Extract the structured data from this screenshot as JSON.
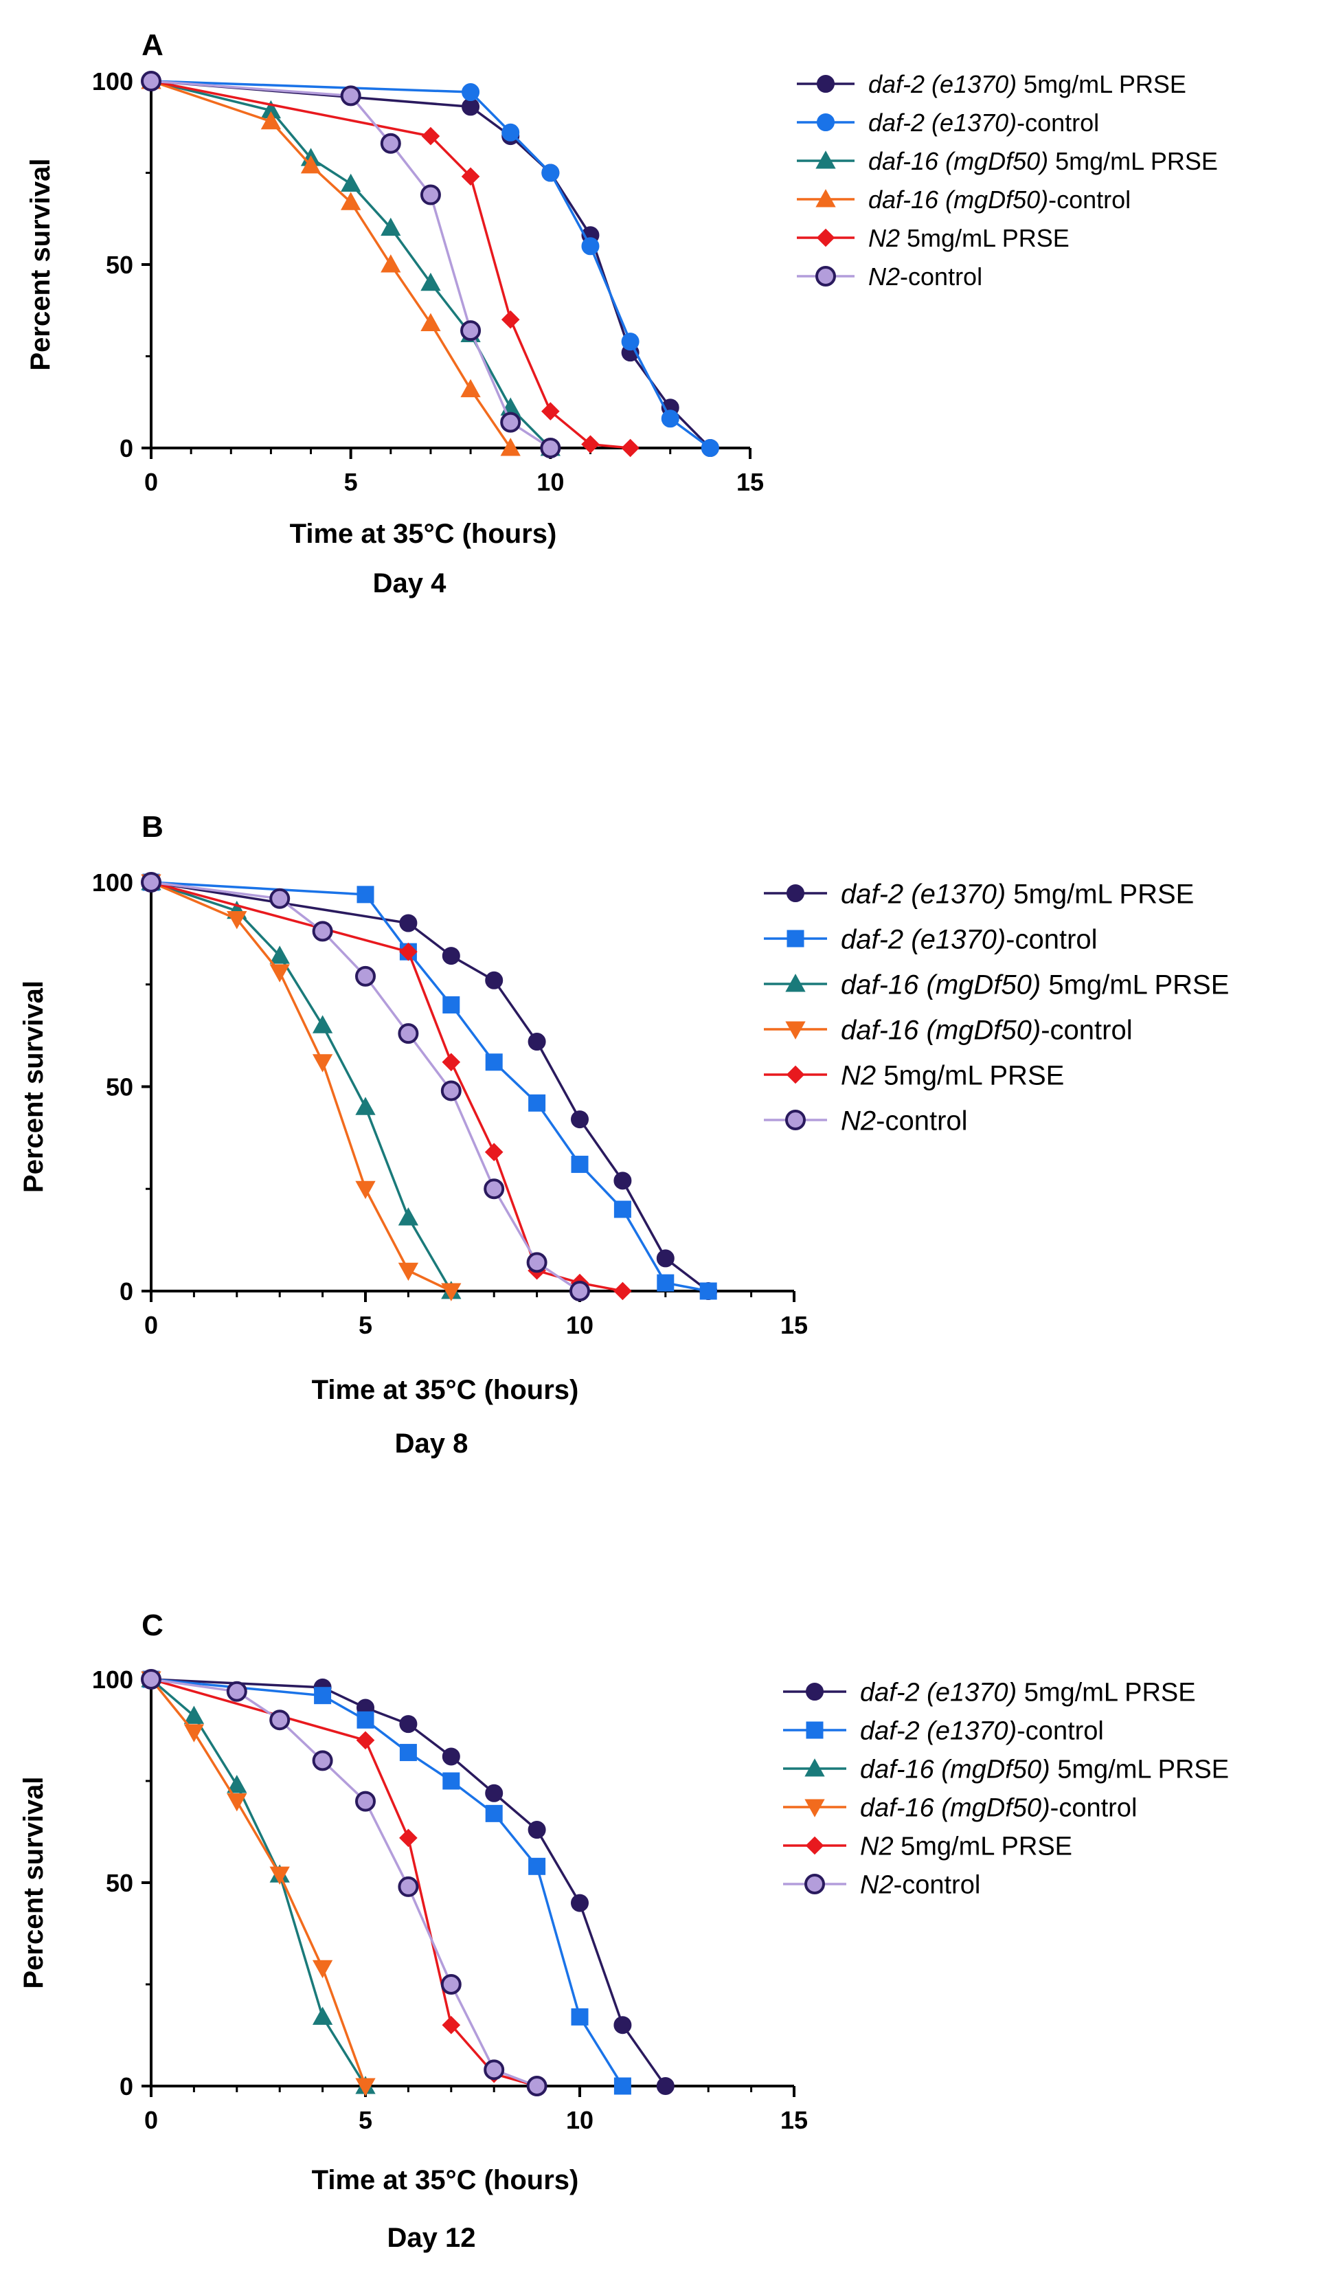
{
  "series_styles": [
    {
      "color": "#2a1a5e",
      "fill": "#2a1a5e",
      "marker": "circle"
    },
    {
      "color": "#1a73e8",
      "fill": "#1a73e8",
      "marker": "circle"
    },
    {
      "color": "#1a7a7a",
      "fill": "#1a7a7a",
      "marker": "triangle-up"
    },
    {
      "color": "#f26b1d",
      "fill": "#f26b1d",
      "marker": "triangle-up"
    },
    {
      "color": "#e8191e",
      "fill": "#e8191e",
      "marker": "diamond"
    },
    {
      "color": "#b39ddb",
      "fill": "#b39ddb",
      "marker": "circle-outline"
    }
  ],
  "chart_data": [
    {
      "type": "line",
      "panel_label": "A",
      "xlabel": "Time at 35°C (hours)",
      "subtitle": "Day 4",
      "ylabel": "Percent survival",
      "xlim": [
        0,
        15
      ],
      "ylim": [
        0,
        100
      ],
      "xticks": [
        0,
        5,
        10,
        15
      ],
      "yticks": [
        0,
        50,
        100
      ],
      "legend": "right",
      "series": [
        {
          "name_italic": "daf-2 (e1370)",
          "name_rest": " 5mg/mL PRSE",
          "style": 0,
          "points": [
            [
              0,
              100
            ],
            [
              8,
              93
            ],
            [
              9,
              85
            ],
            [
              10,
              75
            ],
            [
              11,
              58
            ],
            [
              12,
              26
            ],
            [
              13,
              11
            ],
            [
              14,
              0
            ]
          ]
        },
        {
          "name_italic": "daf-2 (e1370)",
          "name_rest": "-control",
          "style": 1,
          "points": [
            [
              0,
              100
            ],
            [
              8,
              97
            ],
            [
              9,
              86
            ],
            [
              10,
              75
            ],
            [
              11,
              55
            ],
            [
              12,
              29
            ],
            [
              13,
              8
            ],
            [
              14,
              0
            ]
          ]
        },
        {
          "name_italic": "daf-16 (mgDf50)",
          "name_rest": " 5mg/mL PRSE",
          "style": 2,
          "points": [
            [
              0,
              100
            ],
            [
              3,
              92
            ],
            [
              4,
              79
            ],
            [
              5,
              72
            ],
            [
              6,
              60
            ],
            [
              7,
              45
            ],
            [
              8,
              31
            ],
            [
              9,
              11
            ],
            [
              10,
              0
            ]
          ]
        },
        {
          "name_italic": "daf-16 (mgDf50)",
          "name_rest": "-control",
          "style": 3,
          "points": [
            [
              0,
              100
            ],
            [
              3,
              89
            ],
            [
              4,
              77
            ],
            [
              5,
              67
            ],
            [
              6,
              50
            ],
            [
              7,
              34
            ],
            [
              8,
              16
            ],
            [
              9,
              0
            ]
          ]
        },
        {
          "name_italic": "N2",
          "name_rest": " 5mg/mL PRSE",
          "style": 4,
          "points": [
            [
              0,
              100
            ],
            [
              7,
              85
            ],
            [
              8,
              74
            ],
            [
              9,
              35
            ],
            [
              10,
              10
            ],
            [
              11,
              1
            ],
            [
              12,
              0
            ]
          ]
        },
        {
          "name_italic": "N2",
          "name_rest": "-control",
          "style": 5,
          "points": [
            [
              0,
              100
            ],
            [
              5,
              96
            ],
            [
              6,
              83
            ],
            [
              7,
              69
            ],
            [
              8,
              32
            ],
            [
              9,
              7
            ],
            [
              10,
              0
            ]
          ]
        }
      ]
    },
    {
      "type": "line",
      "panel_label": "B",
      "xlabel": "Time at 35°C (hours)",
      "subtitle": "Day 8",
      "ylabel": "Percent survival",
      "xlim": [
        0,
        15
      ],
      "ylim": [
        0,
        100
      ],
      "xticks": [
        0,
        5,
        10,
        15
      ],
      "yticks": [
        0,
        50,
        100
      ],
      "legend": "right",
      "series": [
        {
          "name_italic": "daf-2 (e1370)",
          "name_rest": " 5mg/mL PRSE",
          "style": 0,
          "points": [
            [
              0,
              100
            ],
            [
              6,
              90
            ],
            [
              7,
              82
            ],
            [
              8,
              76
            ],
            [
              9,
              61
            ],
            [
              10,
              42
            ],
            [
              11,
              27
            ],
            [
              12,
              8
            ],
            [
              13,
              0
            ]
          ]
        },
        {
          "name_italic": "daf-2 (e1370)",
          "name_rest": "-control",
          "style": 1,
          "marker": "square",
          "points": [
            [
              0,
              100
            ],
            [
              5,
              97
            ],
            [
              6,
              83
            ],
            [
              7,
              70
            ],
            [
              8,
              56
            ],
            [
              9,
              46
            ],
            [
              10,
              31
            ],
            [
              11,
              20
            ],
            [
              12,
              2
            ],
            [
              13,
              0
            ]
          ]
        },
        {
          "name_italic": "daf-16 (mgDf50)",
          "name_rest": " 5mg/mL PRSE",
          "style": 2,
          "points": [
            [
              0,
              100
            ],
            [
              2,
              93
            ],
            [
              3,
              82
            ],
            [
              4,
              65
            ],
            [
              5,
              45
            ],
            [
              6,
              18
            ],
            [
              7,
              0
            ]
          ]
        },
        {
          "name_italic": "daf-16 (mgDf50)",
          "name_rest": "-control",
          "style": 3,
          "marker": "triangle-down",
          "points": [
            [
              0,
              100
            ],
            [
              2,
              91
            ],
            [
              3,
              78
            ],
            [
              4,
              56
            ],
            [
              5,
              25
            ],
            [
              6,
              5
            ],
            [
              7,
              0
            ]
          ]
        },
        {
          "name_italic": "N2",
          "name_rest": " 5mg/mL PRSE",
          "style": 4,
          "points": [
            [
              0,
              100
            ],
            [
              6,
              83
            ],
            [
              7,
              56
            ],
            [
              8,
              34
            ],
            [
              9,
              5
            ],
            [
              10,
              2
            ],
            [
              11,
              0
            ]
          ]
        },
        {
          "name_italic": "N2",
          "name_rest": "-control",
          "style": 5,
          "points": [
            [
              0,
              100
            ],
            [
              3,
              96
            ],
            [
              4,
              88
            ],
            [
              5,
              77
            ],
            [
              6,
              63
            ],
            [
              7,
              49
            ],
            [
              8,
              25
            ],
            [
              9,
              7
            ],
            [
              10,
              0
            ]
          ]
        }
      ]
    },
    {
      "type": "line",
      "panel_label": "C",
      "xlabel": "Time at 35°C (hours)",
      "subtitle": "Day 12",
      "ylabel": "Percent survival",
      "xlim": [
        0,
        15
      ],
      "ylim": [
        0,
        100
      ],
      "xticks": [
        0,
        5,
        10,
        15
      ],
      "yticks": [
        0,
        50,
        100
      ],
      "legend": "right",
      "series": [
        {
          "name_italic": "daf-2 (e1370)",
          "name_rest": " 5mg/mL PRSE",
          "style": 0,
          "points": [
            [
              0,
              100
            ],
            [
              4,
              98
            ],
            [
              5,
              93
            ],
            [
              6,
              89
            ],
            [
              7,
              81
            ],
            [
              8,
              72
            ],
            [
              9,
              63
            ],
            [
              10,
              45
            ],
            [
              11,
              15
            ],
            [
              12,
              0
            ]
          ]
        },
        {
          "name_italic": "daf-2 (e1370)",
          "name_rest": "-control",
          "style": 1,
          "marker": "square",
          "points": [
            [
              0,
              100
            ],
            [
              4,
              96
            ],
            [
              5,
              90
            ],
            [
              6,
              82
            ],
            [
              7,
              75
            ],
            [
              8,
              67
            ],
            [
              9,
              54
            ],
            [
              10,
              17
            ],
            [
              11,
              0
            ]
          ]
        },
        {
          "name_italic": "daf-16 (mgDf50)",
          "name_rest": " 5mg/mL PRSE",
          "style": 2,
          "points": [
            [
              0,
              100
            ],
            [
              1,
              91
            ],
            [
              2,
              74
            ],
            [
              3,
              52
            ],
            [
              4,
              17
            ],
            [
              5,
              0
            ]
          ]
        },
        {
          "name_italic": "daf-16 (mgDf50)",
          "name_rest": "-control",
          "style": 3,
          "marker": "triangle-down",
          "points": [
            [
              0,
              100
            ],
            [
              1,
              87
            ],
            [
              2,
              70
            ],
            [
              3,
              52
            ],
            [
              4,
              29
            ],
            [
              5,
              0
            ]
          ]
        },
        {
          "name_italic": "N2",
          "name_rest": " 5mg/mL PRSE",
          "style": 4,
          "points": [
            [
              0,
              100
            ],
            [
              5,
              85
            ],
            [
              6,
              61
            ],
            [
              7,
              15
            ],
            [
              8,
              3
            ],
            [
              9,
              0
            ]
          ]
        },
        {
          "name_italic": "N2",
          "name_rest": "-control",
          "style": 5,
          "points": [
            [
              0,
              100
            ],
            [
              2,
              97
            ],
            [
              3,
              90
            ],
            [
              4,
              80
            ],
            [
              5,
              70
            ],
            [
              6,
              49
            ],
            [
              7,
              25
            ],
            [
              8,
              4
            ],
            [
              9,
              0
            ]
          ]
        }
      ]
    }
  ]
}
